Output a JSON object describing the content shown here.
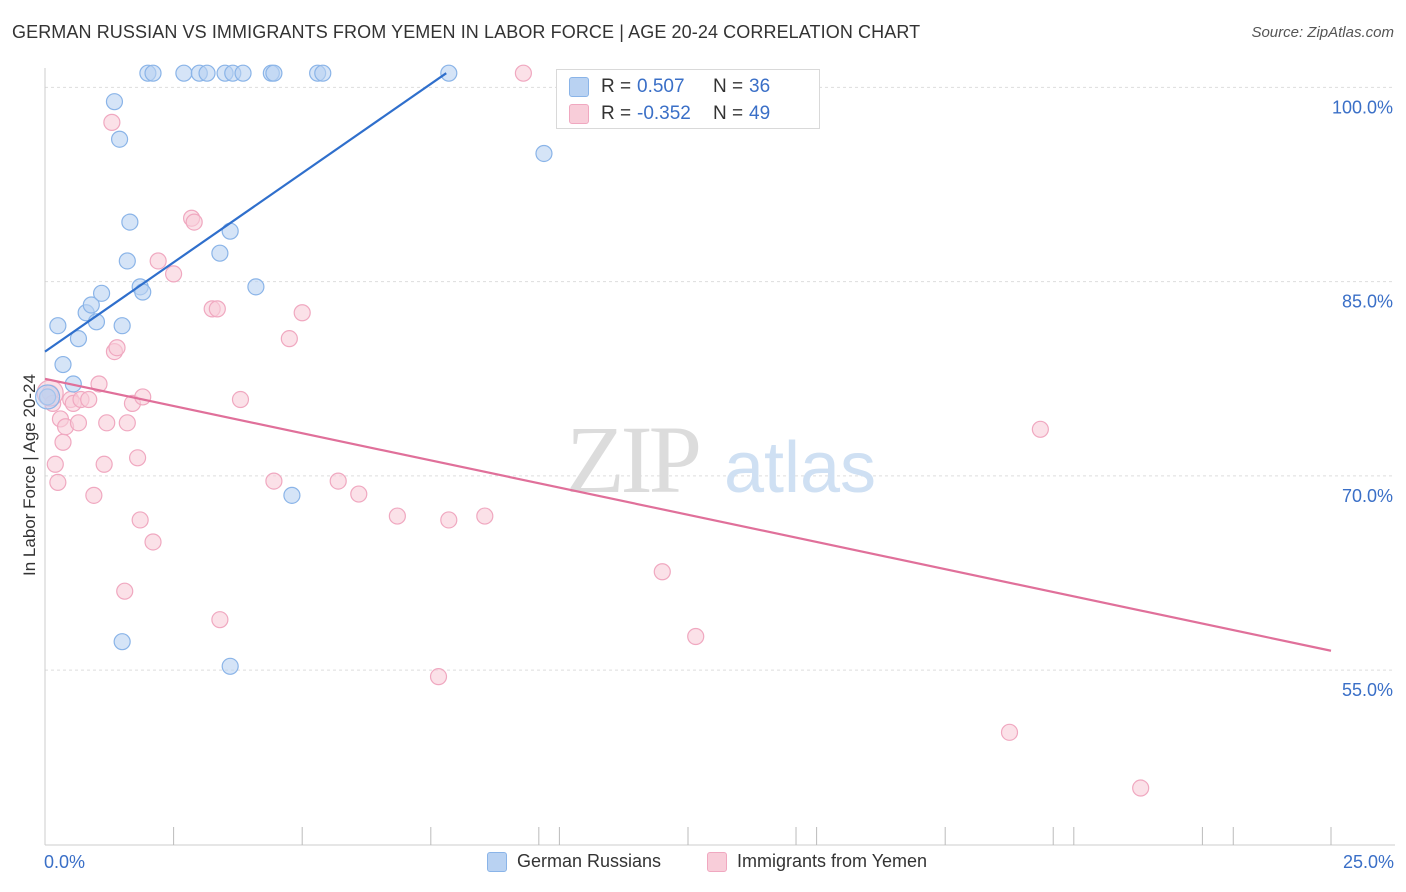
{
  "header": {
    "title": "GERMAN RUSSIAN VS IMMIGRANTS FROM YEMEN IN LABOR FORCE | AGE 20-24 CORRELATION CHART",
    "source": "Source: ZipAtlas.com"
  },
  "watermark": {
    "zip": "ZIP",
    "atlas": "atlas"
  },
  "chart_data": {
    "type": "scatter",
    "ylabel": "In Labor Force | Age 20-24",
    "xlim": [
      0,
      25
    ],
    "ylim": [
      41.5,
      101.5
    ],
    "x_tick_labels": {
      "min": "0.0%",
      "max": "25.0%"
    },
    "y_ticks": [
      {
        "value": 100,
        "label": "100.0%"
      },
      {
        "value": 85,
        "label": "85.0%"
      },
      {
        "value": 70,
        "label": "70.0%"
      },
      {
        "value": 55,
        "label": "55.0%"
      }
    ],
    "grid": true,
    "legend_position": "top-center",
    "series": [
      {
        "name": "German Russians",
        "color": "#8ab4e8",
        "fill": "#b9d2f2",
        "line_color": "#2f6fcc",
        "r": "0.507",
        "n": "36",
        "trend": {
          "x": [
            0.0,
            7.8
          ],
          "y": [
            79.6,
            101.1
          ]
        },
        "points": [
          [
            0.05,
            76.1
          ],
          [
            0.25,
            81.6
          ],
          [
            0.35,
            78.6
          ],
          [
            0.55,
            77.1
          ],
          [
            0.65,
            80.6
          ],
          [
            0.8,
            82.6
          ],
          [
            0.9,
            83.2
          ],
          [
            1.0,
            81.9
          ],
          [
            1.1,
            84.1
          ],
          [
            1.35,
            98.9
          ],
          [
            1.5,
            81.6
          ],
          [
            1.6,
            86.6
          ],
          [
            1.65,
            89.6
          ],
          [
            1.85,
            84.6
          ],
          [
            1.9,
            84.2
          ],
          [
            2.0,
            101.1
          ],
          [
            2.1,
            101.1
          ],
          [
            2.7,
            101.1
          ],
          [
            3.0,
            101.1
          ],
          [
            3.15,
            101.1
          ],
          [
            3.5,
            101.1
          ],
          [
            3.65,
            101.1
          ],
          [
            3.85,
            101.1
          ],
          [
            4.4,
            101.1
          ],
          [
            4.45,
            101.1
          ],
          [
            5.3,
            101.1
          ],
          [
            5.4,
            101.1
          ],
          [
            1.45,
            96.0
          ],
          [
            3.4,
            87.2
          ],
          [
            3.6,
            88.9
          ],
          [
            4.1,
            84.6
          ],
          [
            4.8,
            68.5
          ],
          [
            1.5,
            57.2
          ],
          [
            3.6,
            55.3
          ],
          [
            7.85,
            101.1
          ],
          [
            9.7,
            94.9
          ]
        ]
      },
      {
        "name": "Immigrants from Yemen",
        "color": "#f0a8c0",
        "fill": "#f8cdd9",
        "line_color": "#e0709a",
        "r": "-0.352",
        "n": "49",
        "trend": {
          "x": [
            0.0,
            25.0
          ],
          "y": [
            77.5,
            56.5
          ]
        },
        "points": [
          [
            0.1,
            76.4
          ],
          [
            0.15,
            75.6
          ],
          [
            0.2,
            70.9
          ],
          [
            0.3,
            74.4
          ],
          [
            0.35,
            72.6
          ],
          [
            0.4,
            73.8
          ],
          [
            0.5,
            75.9
          ],
          [
            0.55,
            75.6
          ],
          [
            0.65,
            74.1
          ],
          [
            0.7,
            75.9
          ],
          [
            0.85,
            75.9
          ],
          [
            0.95,
            68.5
          ],
          [
            1.05,
            77.1
          ],
          [
            1.15,
            70.9
          ],
          [
            1.2,
            74.1
          ],
          [
            1.35,
            79.6
          ],
          [
            1.4,
            79.9
          ],
          [
            1.6,
            74.1
          ],
          [
            1.7,
            75.6
          ],
          [
            1.8,
            71.4
          ],
          [
            1.85,
            66.6
          ],
          [
            1.9,
            76.1
          ],
          [
            2.1,
            64.9
          ],
          [
            2.2,
            86.6
          ],
          [
            2.5,
            85.6
          ],
          [
            2.85,
            89.9
          ],
          [
            2.9,
            89.6
          ],
          [
            3.25,
            82.9
          ],
          [
            3.35,
            82.9
          ],
          [
            3.4,
            58.9
          ],
          [
            3.8,
            75.9
          ],
          [
            4.45,
            69.6
          ],
          [
            4.75,
            80.6
          ],
          [
            5.0,
            82.6
          ],
          [
            5.7,
            69.6
          ],
          [
            6.1,
            68.6
          ],
          [
            6.85,
            66.9
          ],
          [
            7.65,
            54.5
          ],
          [
            7.85,
            66.6
          ],
          [
            8.55,
            66.9
          ],
          [
            9.3,
            101.1
          ],
          [
            12.0,
            62.6
          ],
          [
            12.65,
            57.6
          ],
          [
            18.75,
            50.2
          ],
          [
            19.35,
            73.6
          ],
          [
            21.3,
            45.9
          ],
          [
            1.3,
            97.3
          ],
          [
            1.55,
            61.1
          ],
          [
            0.25,
            69.5
          ]
        ]
      }
    ]
  }
}
